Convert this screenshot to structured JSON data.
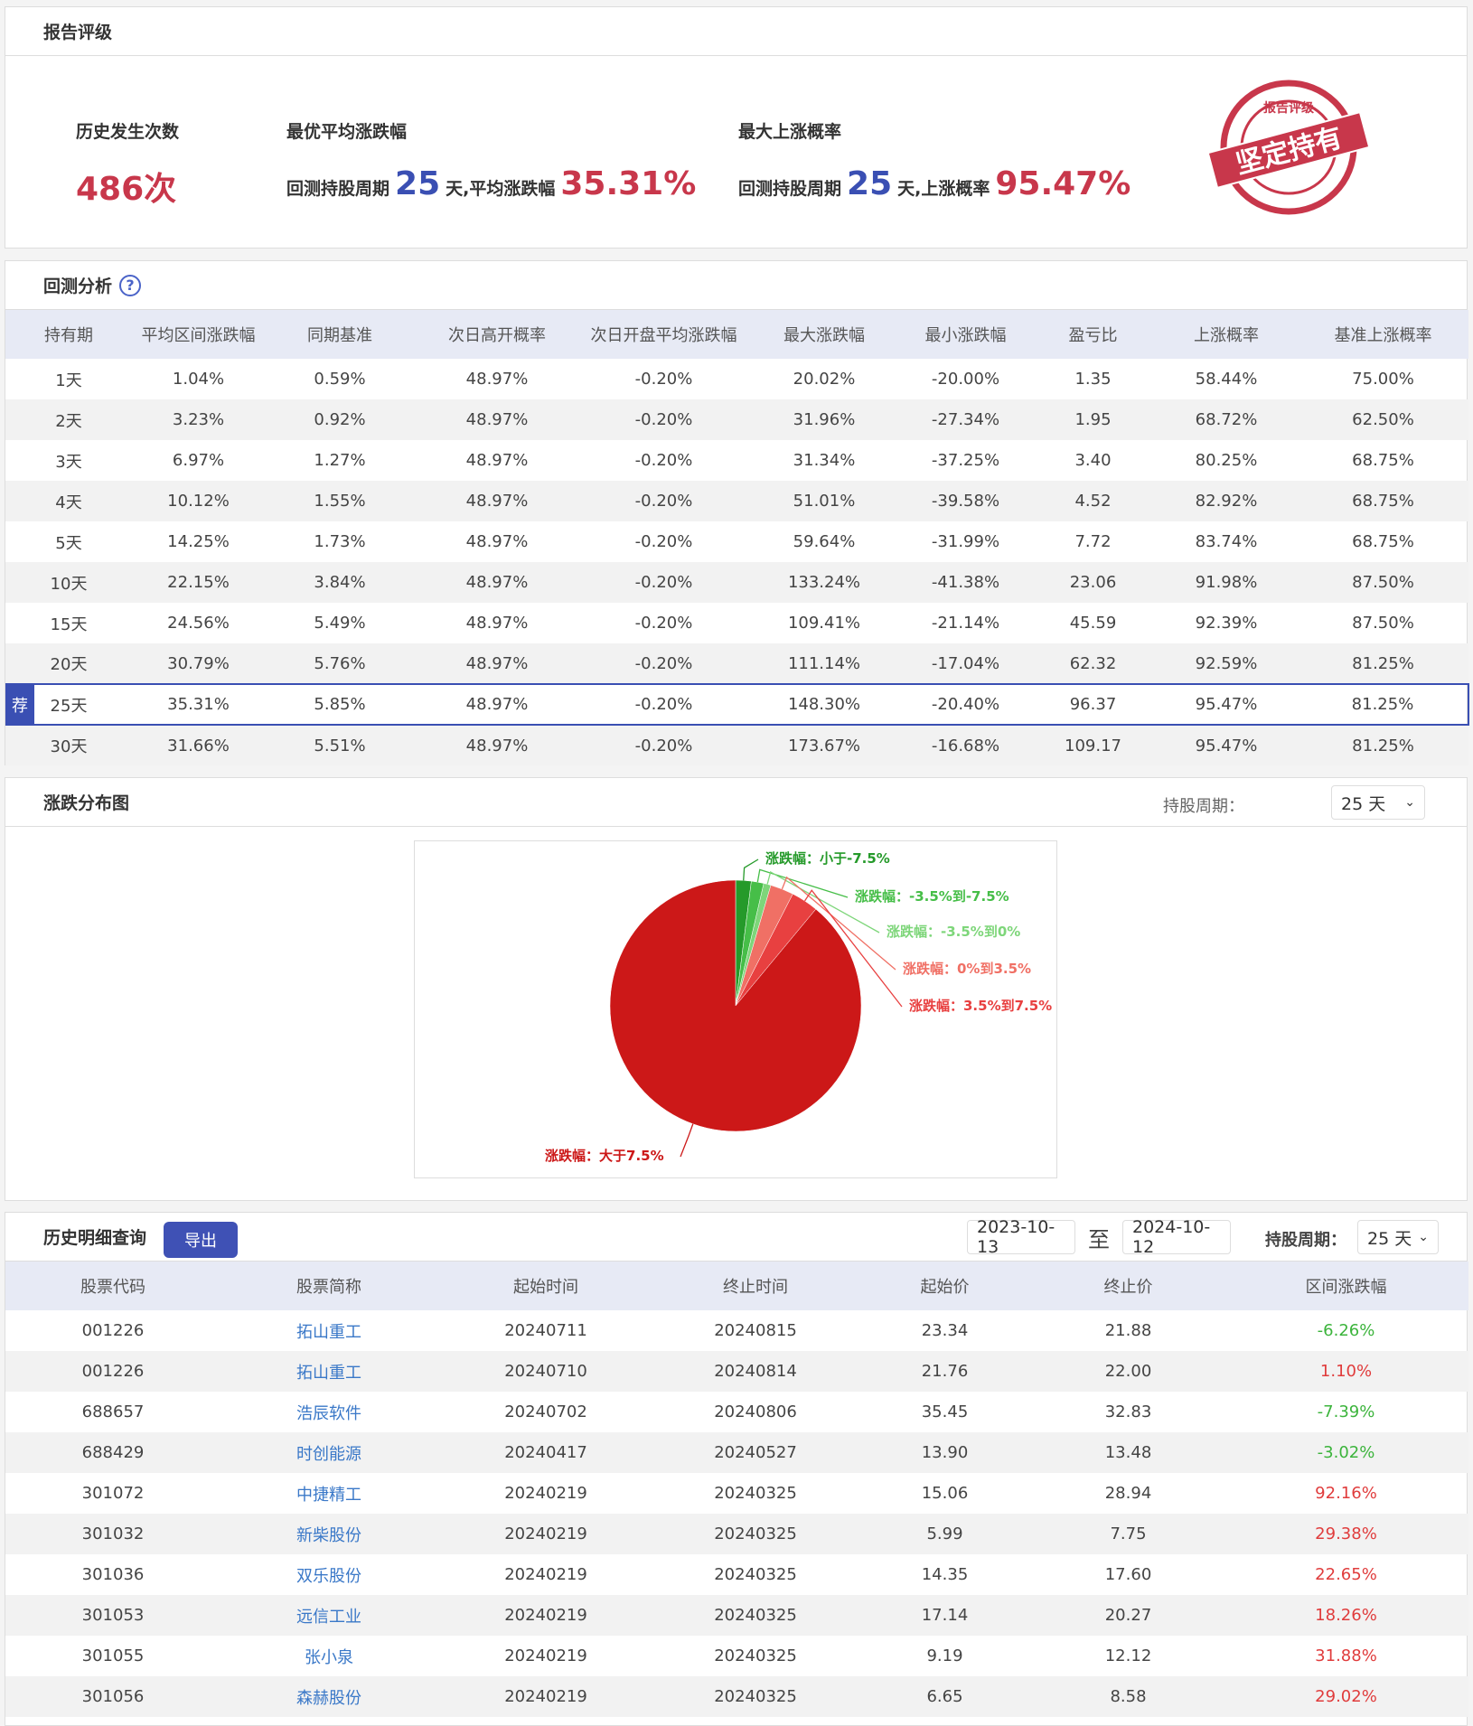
{
  "rating": {
    "title": "报告评级",
    "count_label": "历史发生次数",
    "count_value": "486次",
    "avg_label": "最优平均涨跌幅",
    "avg_prefix": "回测持股周期",
    "avg_days": "25",
    "avg_mid": "天,平均涨跌幅",
    "avg_value": "35.31%",
    "prob_label": "最大上涨概率",
    "prob_prefix": "回测持股周期",
    "prob_days": "25",
    "prob_mid": "天,上涨概率",
    "prob_value": "95.47%",
    "stamp_top": "报告评级",
    "stamp_main": "坚定持有",
    "stamp_color": "#c8374b"
  },
  "backtest": {
    "title": "回测分析",
    "help": "?",
    "recommend_tag": "荐",
    "headers": [
      "持有期",
      "平均区间涨跌幅",
      "同期基准",
      "次日高开概率",
      "次日开盘平均涨跌幅",
      "最大涨跌幅",
      "最小涨跌幅",
      "盈亏比",
      "上涨概率",
      "基准上涨概率"
    ],
    "rows": [
      [
        "1天",
        "1.04%",
        "0.59%",
        "48.97%",
        "-0.20%",
        "20.02%",
        "-20.00%",
        "1.35",
        "58.44%",
        "75.00%"
      ],
      [
        "2天",
        "3.23%",
        "0.92%",
        "48.97%",
        "-0.20%",
        "31.96%",
        "-27.34%",
        "1.95",
        "68.72%",
        "62.50%"
      ],
      [
        "3天",
        "6.97%",
        "1.27%",
        "48.97%",
        "-0.20%",
        "31.34%",
        "-37.25%",
        "3.40",
        "80.25%",
        "68.75%"
      ],
      [
        "4天",
        "10.12%",
        "1.55%",
        "48.97%",
        "-0.20%",
        "51.01%",
        "-39.58%",
        "4.52",
        "82.92%",
        "68.75%"
      ],
      [
        "5天",
        "14.25%",
        "1.73%",
        "48.97%",
        "-0.20%",
        "59.64%",
        "-31.99%",
        "7.72",
        "83.74%",
        "68.75%"
      ],
      [
        "10天",
        "22.15%",
        "3.84%",
        "48.97%",
        "-0.20%",
        "133.24%",
        "-41.38%",
        "23.06",
        "91.98%",
        "87.50%"
      ],
      [
        "15天",
        "24.56%",
        "5.49%",
        "48.97%",
        "-0.20%",
        "109.41%",
        "-21.14%",
        "45.59",
        "92.39%",
        "87.50%"
      ],
      [
        "20天",
        "30.79%",
        "5.76%",
        "48.97%",
        "-0.20%",
        "111.14%",
        "-17.04%",
        "62.32",
        "92.59%",
        "81.25%"
      ],
      [
        "25天",
        "35.31%",
        "5.85%",
        "48.97%",
        "-0.20%",
        "148.30%",
        "-20.40%",
        "96.37",
        "95.47%",
        "81.25%"
      ],
      [
        "30天",
        "31.66%",
        "5.51%",
        "48.97%",
        "-0.20%",
        "173.67%",
        "-16.68%",
        "109.17",
        "95.47%",
        "81.25%"
      ]
    ],
    "recommended_index": 8
  },
  "distribution": {
    "title": "涨跌分布图",
    "period_label": "持股周期：",
    "period_value": "25 天"
  },
  "chart_data": {
    "type": "pie",
    "title": "",
    "slices": [
      {
        "label": "涨跌幅：小于-7.5%",
        "value": 2.0,
        "color": "#259a2a"
      },
      {
        "label": "涨跌幅：-3.5%到-7.5%",
        "value": 1.6,
        "color": "#46be48"
      },
      {
        "label": "涨跌幅：-3.5%到0%",
        "value": 0.93,
        "color": "#7ed67a"
      },
      {
        "label": "涨跌幅：0%到3.5%",
        "value": 3.0,
        "color": "#f07065"
      },
      {
        "label": "涨跌幅：3.5%到7.5%",
        "value": 3.5,
        "color": "#e84040"
      },
      {
        "label": "涨跌幅：大于7.5%",
        "value": 88.97,
        "color": "#cc1818"
      }
    ]
  },
  "history": {
    "title": "历史明细查询",
    "export": "导出",
    "date_from": "2023-10-13",
    "to": "至",
    "date_to": "2024-10-12",
    "period_label": "持股周期：",
    "period_value": "25 天",
    "headers": [
      "股票代码",
      "股票简称",
      "起始时间",
      "终止时间",
      "起始价",
      "终止价",
      "区间涨跌幅"
    ],
    "rows": [
      [
        "001226",
        "拓山重工",
        "20240711",
        "20240815",
        "23.34",
        "21.88",
        "-6.26%"
      ],
      [
        "001226",
        "拓山重工",
        "20240710",
        "20240814",
        "21.76",
        "22.00",
        "1.10%"
      ],
      [
        "688657",
        "浩辰软件",
        "20240702",
        "20240806",
        "35.45",
        "32.83",
        "-7.39%"
      ],
      [
        "688429",
        "时创能源",
        "20240417",
        "20240527",
        "13.90",
        "13.48",
        "-3.02%"
      ],
      [
        "301072",
        "中捷精工",
        "20240219",
        "20240325",
        "15.06",
        "28.94",
        "92.16%"
      ],
      [
        "301032",
        "新柴股份",
        "20240219",
        "20240325",
        "5.99",
        "7.75",
        "29.38%"
      ],
      [
        "301036",
        "双乐股份",
        "20240219",
        "20240325",
        "14.35",
        "17.60",
        "22.65%"
      ],
      [
        "301053",
        "远信工业",
        "20240219",
        "20240325",
        "17.14",
        "20.27",
        "18.26%"
      ],
      [
        "301055",
        "张小泉",
        "20240219",
        "20240325",
        "9.19",
        "12.12",
        "31.88%"
      ],
      [
        "301056",
        "森赫股份",
        "20240219",
        "20240325",
        "6.65",
        "8.58",
        "29.02%"
      ]
    ]
  }
}
